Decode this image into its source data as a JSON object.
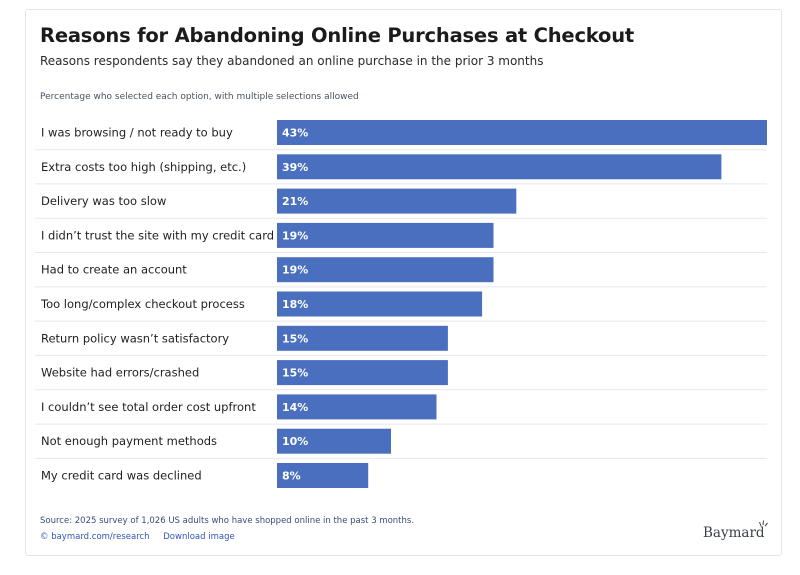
{
  "header": {
    "title": "Reasons for Abandoning Online Purchases at Checkout",
    "subtitle": "Reasons respondents say they abandoned an online purchase in the prior 3 months",
    "note": "Percentage who selected each option, with multiple selections allowed"
  },
  "chart_data": {
    "type": "bar",
    "orientation": "horizontal",
    "categories": [
      "I was browsing / not ready to buy",
      "Extra costs too high (shipping, etc.)",
      "Delivery was too slow",
      "I didn’t trust the site with my credit card",
      "Had to create an account",
      "Too long/complex checkout process",
      "Return policy wasn’t satisfactory",
      "Website had errors/crashed",
      "I couldn’t see total order cost upfront",
      "Not enough payment methods",
      "My credit card was declined"
    ],
    "values": [
      43,
      39,
      21,
      19,
      19,
      18,
      15,
      15,
      14,
      10,
      8
    ],
    "value_suffix": "%",
    "title": "Reasons for Abandoning Online Purchases at Checkout",
    "xlabel": "",
    "ylabel": "",
    "xlim": [
      0,
      43
    ],
    "grid": false,
    "bar_color": "#4a6fbe"
  },
  "footer": {
    "source": "Source: 2025 survey of 1,026 US adults who have shopped online in the past 3 months.",
    "link_research": "© baymard.com/research",
    "link_download": "Download image",
    "logo_text": "Baymard"
  },
  "colors": {
    "bar": "#4a6fbe",
    "link": "#2f56b4",
    "row_divider": "#e6e8ec"
  }
}
